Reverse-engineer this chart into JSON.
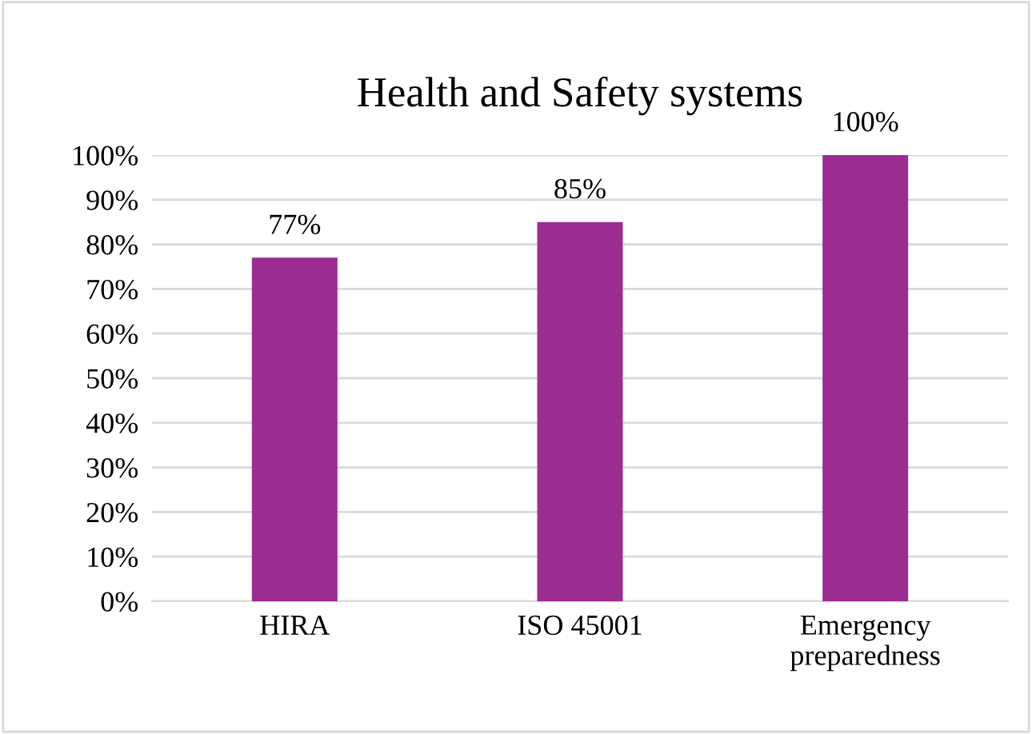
{
  "chart_data": {
    "type": "bar",
    "title": "Health and Safety systems",
    "categories": [
      "HIRA",
      "ISO 45001",
      "Emergency\npreparedness"
    ],
    "values": [
      77,
      85,
      100
    ],
    "value_labels": [
      "77%",
      "85%",
      "100%"
    ],
    "color": "#9b2d91",
    "ylim": [
      0,
      100
    ],
    "yticks": [
      {
        "value": 0,
        "label": "0%"
      },
      {
        "value": 10,
        "label": "10%"
      },
      {
        "value": 20,
        "label": "20%"
      },
      {
        "value": 30,
        "label": "30%"
      },
      {
        "value": 40,
        "label": "40%"
      },
      {
        "value": 50,
        "label": "50%"
      },
      {
        "value": 60,
        "label": "60%"
      },
      {
        "value": 70,
        "label": "70%"
      },
      {
        "value": 80,
        "label": "80%"
      },
      {
        "value": 90,
        "label": "90%"
      },
      {
        "value": 100,
        "label": "100%"
      }
    ],
    "grid": "y"
  }
}
